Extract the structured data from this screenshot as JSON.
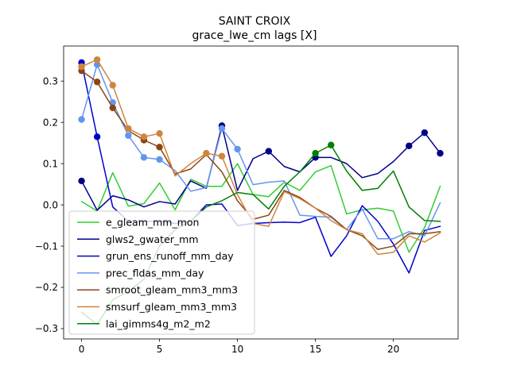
{
  "chart_data": {
    "type": "line",
    "title": "SAINT CROIX",
    "subtitle": "grace_lwe_cm lags [X]",
    "xlabel": "",
    "ylabel": "",
    "x": [
      0,
      1,
      2,
      3,
      4,
      5,
      6,
      7,
      8,
      9,
      10,
      11,
      12,
      13,
      14,
      15,
      16,
      17,
      18,
      19,
      20,
      21,
      22,
      23
    ],
    "xlim": [
      -1.15,
      24.15
    ],
    "ylim": [
      -0.325,
      0.385
    ],
    "xticks": [
      0,
      5,
      10,
      15,
      20
    ],
    "yticks": [
      -0.3,
      -0.2,
      -0.1,
      0.0,
      0.1,
      0.2,
      0.3
    ],
    "ytick_labels": [
      "−0.3",
      "−0.2",
      "−0.1",
      "0.0",
      "0.1",
      "0.2",
      "0.3"
    ],
    "grid": false,
    "legend_position": "lower-left",
    "series": [
      {
        "name": "e_gleam_mm_mon",
        "color": "#32cd32",
        "values": [
          0.008,
          -0.015,
          0.078,
          -0.003,
          0.003,
          0.053,
          -0.012,
          0.062,
          0.045,
          0.045,
          0.1,
          0.025,
          0.02,
          0.055,
          0.035,
          0.08,
          0.095,
          -0.022,
          -0.012,
          -0.008,
          -0.015,
          -0.115,
          -0.055,
          0.045
        ],
        "markers": []
      },
      {
        "name": "glws2_gwater_mm",
        "color": "#00008b",
        "values": [
          0.058,
          -0.013,
          0.022,
          0.012,
          -0.005,
          0.008,
          0.002,
          0.058,
          0.04,
          0.192,
          0.035,
          0.112,
          0.13,
          0.093,
          0.08,
          0.115,
          0.115,
          0.1,
          0.066,
          0.076,
          0.105,
          0.143,
          0.175,
          0.125
        ],
        "markers": [
          0,
          9,
          12,
          15,
          21,
          22,
          23
        ]
      },
      {
        "name": "grun_ens_runoff_mm_day",
        "color": "#0000cd",
        "values": [
          0.345,
          0.165,
          -0.005,
          -0.04,
          -0.04,
          -0.04,
          -0.045,
          -0.04,
          0.0,
          0.002,
          -0.05,
          -0.045,
          -0.043,
          -0.042,
          -0.043,
          -0.03,
          -0.125,
          -0.075,
          -0.002,
          -0.04,
          -0.095,
          -0.165,
          -0.062,
          -0.052
        ],
        "markers": [
          0,
          1
        ]
      },
      {
        "name": "prec_fldas_mm_day",
        "color": "#6495ed",
        "values": [
          0.207,
          0.34,
          0.248,
          0.168,
          0.115,
          0.11,
          0.083,
          0.033,
          0.042,
          0.185,
          0.135,
          0.049,
          0.055,
          0.058,
          -0.025,
          -0.028,
          -0.03,
          -0.06,
          -0.01,
          -0.082,
          -0.082,
          -0.065,
          -0.075,
          0.005
        ],
        "markers": [
          0,
          1,
          2,
          3,
          4,
          5,
          9,
          10
        ]
      },
      {
        "name": "smroot_gleam_mm3_mm3",
        "color": "#8b4513",
        "values": [
          0.325,
          0.298,
          0.235,
          0.18,
          0.157,
          0.14,
          0.075,
          0.087,
          0.122,
          0.08,
          0.01,
          -0.035,
          -0.025,
          0.035,
          0.018,
          -0.008,
          -0.028,
          -0.06,
          -0.075,
          -0.108,
          -0.1,
          -0.07,
          -0.07,
          -0.065
        ],
        "markers": [
          0,
          1,
          2,
          4,
          5
        ]
      },
      {
        "name": "smsurf_gleam_mm3_mm3",
        "color": "#cd853f",
        "values": [
          0.335,
          0.352,
          0.29,
          0.185,
          0.165,
          0.173,
          0.07,
          0.1,
          0.125,
          0.118,
          0.025,
          -0.045,
          -0.052,
          0.032,
          0.015,
          -0.008,
          -0.038,
          -0.06,
          -0.07,
          -0.12,
          -0.115,
          -0.075,
          -0.09,
          -0.068
        ],
        "markers": [
          0,
          1,
          2,
          3,
          4,
          5,
          8,
          9
        ]
      },
      {
        "name": "lai_gimms4g_m2_m2",
        "color": "#008000",
        "values": [
          -0.26,
          -0.29,
          -0.23,
          -0.21,
          -0.18,
          -0.1,
          -0.06,
          -0.04,
          -0.005,
          0.01,
          0.03,
          0.025,
          -0.01,
          0.045,
          0.08,
          0.125,
          0.145,
          0.082,
          0.035,
          0.04,
          0.082,
          -0.005,
          -0.038,
          -0.04
        ],
        "markers": [
          15,
          16
        ]
      }
    ]
  }
}
